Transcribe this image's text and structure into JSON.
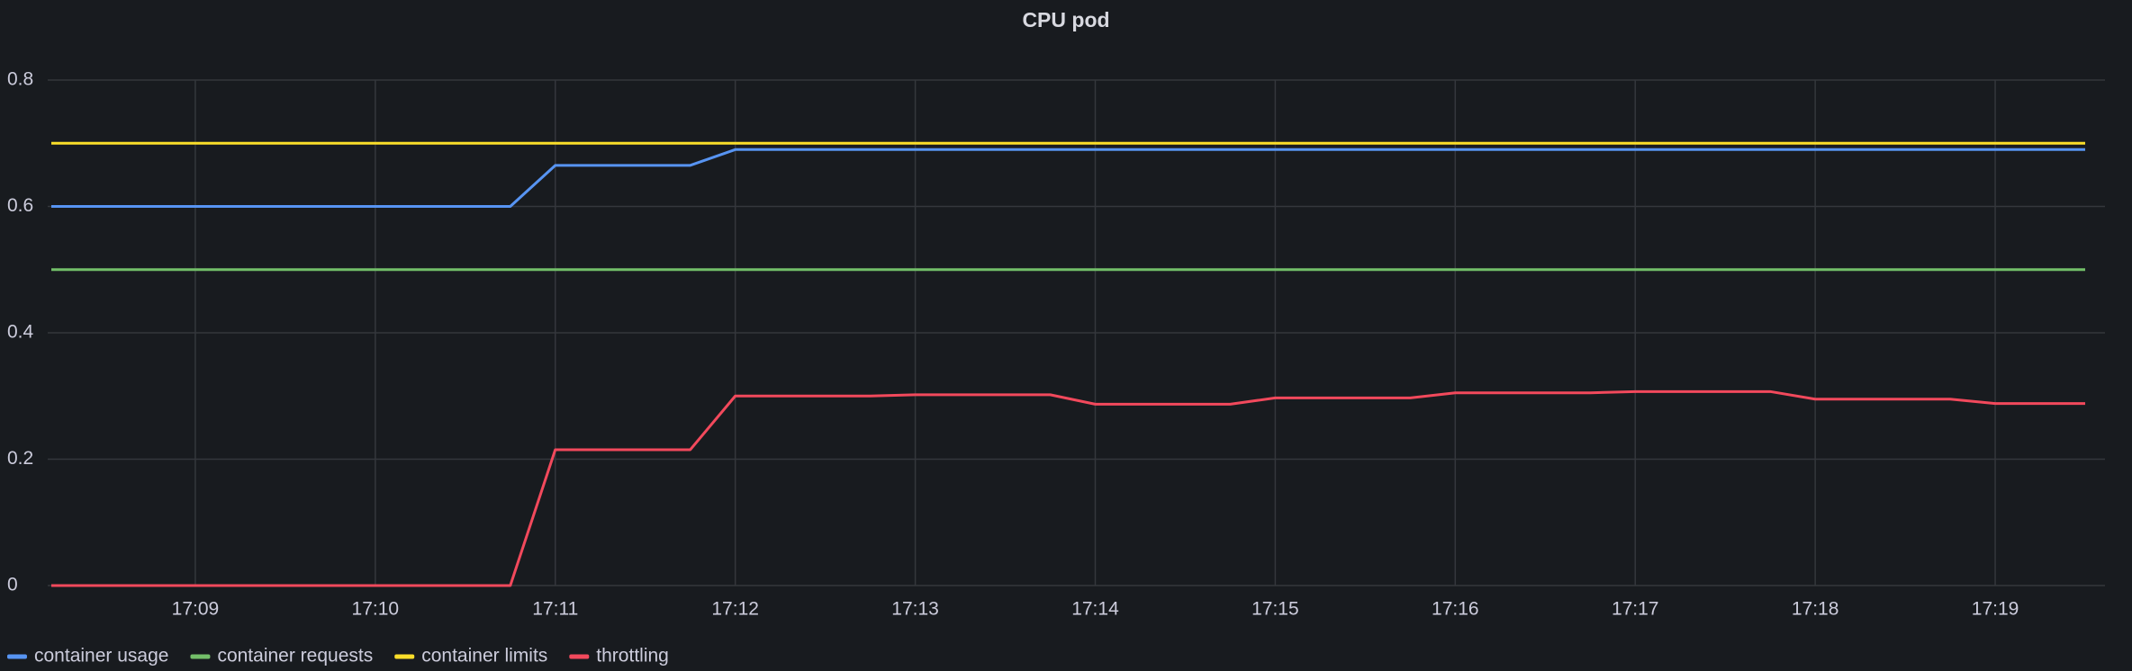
{
  "chart_data": {
    "type": "line",
    "title": "CPU pod",
    "x": [
      1028.2,
      1030.75,
      1031,
      1031.75,
      1032,
      1032.75,
      1033,
      1033.75,
      1034,
      1034.75,
      1035,
      1035.75,
      1036,
      1036.75,
      1037,
      1037.75,
      1038,
      1038.75,
      1039,
      1039.5
    ],
    "xlim": [
      1028.18,
      1039.61
    ],
    "xticks": [
      {
        "value": 1029,
        "label": "17:09"
      },
      {
        "value": 1030,
        "label": "17:10"
      },
      {
        "value": 1031,
        "label": "17:11"
      },
      {
        "value": 1032,
        "label": "17:12"
      },
      {
        "value": 1033,
        "label": "17:13"
      },
      {
        "value": 1034,
        "label": "17:14"
      },
      {
        "value": 1035,
        "label": "17:15"
      },
      {
        "value": 1036,
        "label": "17:16"
      },
      {
        "value": 1037,
        "label": "17:17"
      },
      {
        "value": 1038,
        "label": "17:18"
      },
      {
        "value": 1039,
        "label": "17:19"
      }
    ],
    "ylim": [
      0,
      0.8
    ],
    "yticks": [
      0,
      0.2,
      0.4,
      0.6,
      0.8
    ],
    "grid": true,
    "series": [
      {
        "name": "container usage",
        "color": "#5794f2",
        "values": [
          0.6,
          0.6,
          0.665,
          0.665,
          0.69,
          0.69,
          0.69,
          0.69,
          0.69,
          0.69,
          0.69,
          0.69,
          0.69,
          0.69,
          0.69,
          0.69,
          0.69,
          0.69,
          0.69,
          0.69
        ]
      },
      {
        "name": "container requests",
        "color": "#73bf69",
        "values": [
          0.5,
          0.5,
          0.5,
          0.5,
          0.5,
          0.5,
          0.5,
          0.5,
          0.5,
          0.5,
          0.5,
          0.5,
          0.5,
          0.5,
          0.5,
          0.5,
          0.5,
          0.5,
          0.5,
          0.5
        ]
      },
      {
        "name": "container limits",
        "color": "#fade2a",
        "values": [
          0.7,
          0.7,
          0.7,
          0.7,
          0.7,
          0.7,
          0.7,
          0.7,
          0.7,
          0.7,
          0.7,
          0.7,
          0.7,
          0.7,
          0.7,
          0.7,
          0.7,
          0.7,
          0.7,
          0.7
        ]
      },
      {
        "name": "throttling",
        "color": "#f2495c",
        "values": [
          0,
          0,
          0.215,
          0.215,
          0.3,
          0.3,
          0.302,
          0.302,
          0.287,
          0.287,
          0.297,
          0.297,
          0.305,
          0.305,
          0.307,
          0.307,
          0.295,
          0.295,
          0.288,
          0.288
        ]
      }
    ],
    "legend": "bottom-left"
  }
}
